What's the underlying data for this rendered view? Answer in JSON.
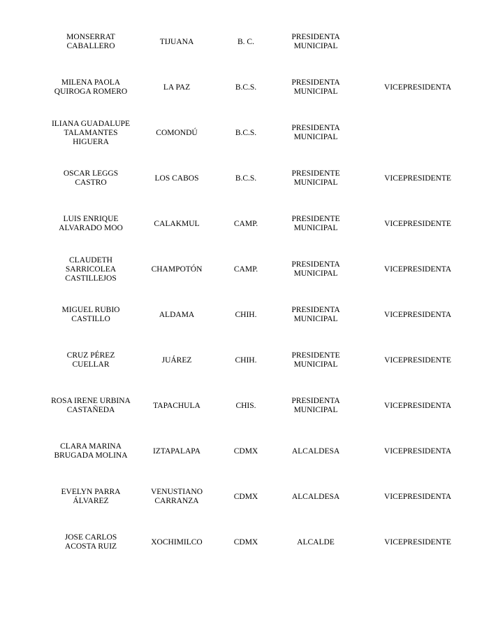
{
  "rows": [
    {
      "name": "MONSERRAT\nCABALLERO",
      "municipio": "TIJUANA",
      "estado": "B. C.",
      "cargo": "PRESIDENTA\nMUNICIPAL",
      "rol": ""
    },
    {
      "name": "MILENA PAOLA\nQUIROGA ROMERO",
      "municipio": "LA PAZ",
      "estado": "B.C.S.",
      "cargo": "PRESIDENTA\nMUNICIPAL",
      "rol": "VICEPRESIDENTA"
    },
    {
      "name": "ILIANA GUADALUPE\nTALAMANTES\nHIGUERA",
      "municipio": "COMONDÚ",
      "estado": "B.C.S.",
      "cargo": "PRESIDENTA\nMUNICIPAL",
      "rol": ""
    },
    {
      "name": "OSCAR LEGGS\nCASTRO",
      "municipio": "LOS CABOS",
      "estado": "B.C.S.",
      "cargo": "PRESIDENTE\nMUNICIPAL",
      "rol": "VICEPRESIDENTE"
    },
    {
      "name": "LUIS ENRIQUE\nALVARADO MOO",
      "municipio": "CALAKMUL",
      "estado": "CAMP.",
      "cargo": "PRESIDENTE\nMUNICIPAL",
      "rol": "VICEPRESIDENTE"
    },
    {
      "name": "CLAUDETH\nSARRICOLEA\nCASTILLEJOS",
      "municipio": "CHAMPOTÓN",
      "estado": "CAMP.",
      "cargo": "PRESIDENTA\nMUNICIPAL",
      "rol": "VICEPRESIDENTA"
    },
    {
      "name": "MIGUEL RUBIO\nCASTILLO",
      "municipio": "ALDAMA",
      "estado": "CHIH.",
      "cargo": "PRESIDENTA\nMUNICIPAL",
      "rol": "VICEPRESIDENTA"
    },
    {
      "name": "CRUZ PÉREZ\nCUELLAR",
      "municipio": "JUÁREZ",
      "estado": "CHIH.",
      "cargo": "PRESIDENTE\nMUNICIPAL",
      "rol": "VICEPRESIDENTE"
    },
    {
      "name": "ROSA IRENE URBINA\nCASTAÑEDA",
      "municipio": "TAPACHULA",
      "estado": "CHIS.",
      "cargo": "PRESIDENTA\nMUNICIPAL",
      "rol": "VICEPRESIDENTA"
    },
    {
      "name": "CLARA MARINA\nBRUGADA MOLINA",
      "municipio": "IZTAPALAPA",
      "estado": "CDMX",
      "cargo": "ALCALDESA",
      "rol": "VICEPRESIDENTA"
    },
    {
      "name": "EVELYN PARRA\nÁLVAREZ",
      "municipio": "VENUSTIANO\nCARRANZA",
      "estado": "CDMX",
      "cargo": "ALCALDESA",
      "rol": "VICEPRESIDENTA"
    },
    {
      "name": "JOSE CARLOS\nACOSTA RUIZ",
      "municipio": "XOCHIMILCO",
      "estado": "CDMX",
      "cargo": "ALCALDE",
      "rol": "VICEPRESIDENTE"
    }
  ]
}
